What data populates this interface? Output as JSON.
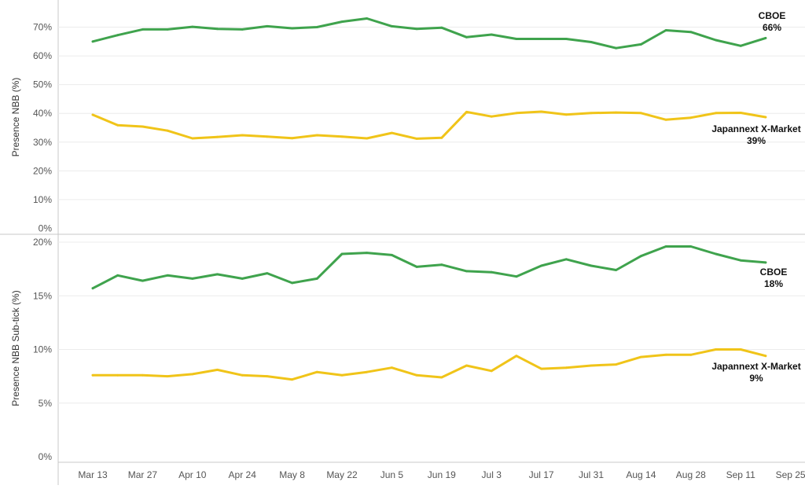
{
  "colors": {
    "cboe": "#3fa34d",
    "japannext": "#f0c419",
    "grid": "#ececec",
    "divider": "#c8c8c8"
  },
  "chart_data": [
    {
      "type": "line",
      "ylabel": "Presence NBB (%)",
      "y_ticks": [
        "0%",
        "10%",
        "20%",
        "30%",
        "40%",
        "50%",
        "60%",
        "70%"
      ],
      "ylim": [
        0,
        75
      ],
      "grid": true,
      "x": [
        "Mar 13",
        "Mar 20",
        "Mar 27",
        "Apr 3",
        "Apr 10",
        "Apr 17",
        "Apr 24",
        "May 1",
        "May 8",
        "May 15",
        "May 22",
        "May 29",
        "Jun 5",
        "Jun 12",
        "Jun 19",
        "Jun 26",
        "Jul 3",
        "Jul 10",
        "Jul 17",
        "Jul 24",
        "Jul 31",
        "Aug 7",
        "Aug 14",
        "Aug 21",
        "Aug 28",
        "Sep 4",
        "Sep 11",
        "Sep 18"
      ],
      "series": [
        {
          "name": "CBOE",
          "label": "66%",
          "values": [
            65.0,
            67.2,
            69.2,
            69.2,
            70.1,
            69.4,
            69.2,
            70.3,
            69.6,
            70.0,
            71.9,
            73.0,
            70.3,
            69.4,
            69.8,
            66.5,
            67.4,
            65.9,
            65.9,
            65.9,
            64.8,
            62.7,
            64.0,
            68.9,
            68.3,
            65.5,
            63.5,
            66.2
          ]
        },
        {
          "name": "Japannext X-Market",
          "label": "39%",
          "values": [
            39.5,
            35.9,
            35.4,
            34.0,
            31.3,
            31.8,
            32.4,
            31.9,
            31.4,
            32.4,
            31.9,
            31.3,
            33.2,
            31.2,
            31.5,
            40.5,
            38.9,
            40.1,
            40.6,
            39.6,
            40.1,
            40.3,
            40.1,
            37.8,
            38.5,
            40.1,
            40.2,
            38.7
          ]
        }
      ]
    },
    {
      "type": "line",
      "ylabel": "Presence NBB Sub-tick (%)",
      "y_ticks": [
        "0%",
        "5%",
        "10%",
        "15%",
        "20%"
      ],
      "ylim": [
        0,
        20.5
      ],
      "grid": true,
      "x_ticks": [
        "Mar 13",
        "Mar 27",
        "Apr 10",
        "Apr 24",
        "May 8",
        "May 22",
        "Jun 5",
        "Jun 19",
        "Jul 3",
        "Jul 17",
        "Jul 31",
        "Aug 14",
        "Aug 28",
        "Sep 11",
        "Sep 25"
      ],
      "x": [
        "Mar 13",
        "Mar 20",
        "Mar 27",
        "Apr 3",
        "Apr 10",
        "Apr 17",
        "Apr 24",
        "May 1",
        "May 8",
        "May 15",
        "May 22",
        "May 29",
        "Jun 5",
        "Jun 12",
        "Jun 19",
        "Jun 26",
        "Jul 3",
        "Jul 10",
        "Jul 17",
        "Jul 24",
        "Jul 31",
        "Aug 7",
        "Aug 14",
        "Aug 21",
        "Aug 28",
        "Sep 4",
        "Sep 11",
        "Sep 18"
      ],
      "series": [
        {
          "name": "CBOE",
          "label": "18%",
          "values": [
            15.7,
            16.9,
            16.4,
            16.9,
            16.6,
            17.0,
            16.6,
            17.1,
            16.2,
            16.6,
            18.9,
            19.0,
            18.8,
            17.7,
            17.9,
            17.3,
            17.2,
            16.8,
            17.8,
            18.4,
            17.8,
            17.4,
            18.7,
            19.6,
            19.6,
            18.9,
            18.3,
            18.1
          ]
        },
        {
          "name": "Japannext X-Market",
          "label": "9%",
          "values": [
            7.6,
            7.6,
            7.6,
            7.5,
            7.7,
            8.1,
            7.6,
            7.5,
            7.2,
            7.9,
            7.6,
            7.9,
            8.3,
            7.6,
            7.4,
            8.5,
            8.0,
            9.4,
            8.2,
            8.3,
            8.5,
            8.6,
            9.3,
            9.5,
            9.5,
            10.0,
            10.0,
            9.4
          ]
        }
      ]
    }
  ]
}
